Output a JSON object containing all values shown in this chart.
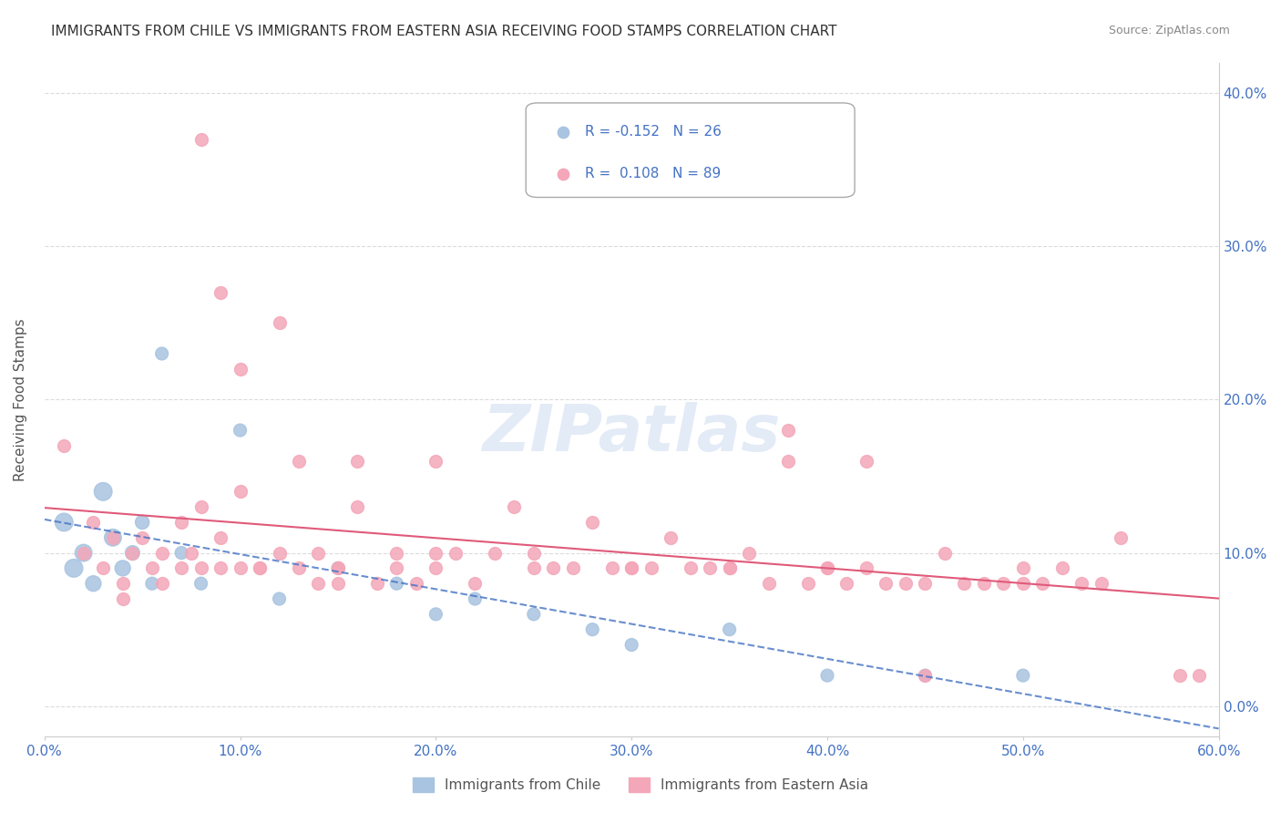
{
  "title": "IMMIGRANTS FROM CHILE VS IMMIGRANTS FROM EASTERN ASIA RECEIVING FOOD STAMPS CORRELATION CHART",
  "source": "Source: ZipAtlas.com",
  "ylabel": "Receiving Food Stamps",
  "xlabel": "",
  "background_color": "#ffffff",
  "grid_color": "#cccccc",
  "title_color": "#333333",
  "source_color": "#888888",
  "axis_label_color": "#555555",
  "tick_color": "#4472c4",
  "xlim": [
    0.0,
    0.6
  ],
  "ylim": [
    -0.02,
    0.42
  ],
  "yticks": [
    0.0,
    0.1,
    0.2,
    0.3,
    0.4
  ],
  "xticks": [
    0.0,
    0.1,
    0.2,
    0.3,
    0.4,
    0.5,
    0.6
  ],
  "chile_color": "#a8c4e0",
  "chile_line_color": "#4472c4",
  "east_asia_color": "#f4a7b9",
  "east_asia_line_color": "#e05a7a",
  "chile_R": -0.152,
  "chile_N": 26,
  "east_asia_R": 0.108,
  "east_asia_N": 89,
  "watermark": "ZIPatlas",
  "chile_scatter_x": [
    0.01,
    0.015,
    0.02,
    0.025,
    0.03,
    0.035,
    0.04,
    0.045,
    0.05,
    0.055,
    0.06,
    0.07,
    0.08,
    0.1,
    0.12,
    0.15,
    0.18,
    0.2,
    0.22,
    0.25,
    0.28,
    0.3,
    0.35,
    0.4,
    0.45,
    0.5
  ],
  "chile_scatter_y": [
    0.12,
    0.09,
    0.1,
    0.08,
    0.14,
    0.11,
    0.09,
    0.1,
    0.12,
    0.08,
    0.23,
    0.1,
    0.08,
    0.18,
    0.07,
    0.09,
    0.08,
    0.06,
    0.07,
    0.06,
    0.05,
    0.04,
    0.05,
    0.02,
    0.02,
    0.02
  ],
  "chile_scatter_size": [
    200,
    200,
    180,
    150,
    200,
    180,
    150,
    130,
    120,
    100,
    100,
    100,
    100,
    100,
    100,
    100,
    100,
    100,
    100,
    100,
    100,
    100,
    100,
    100,
    100,
    100
  ],
  "east_asia_scatter_x": [
    0.01,
    0.02,
    0.025,
    0.03,
    0.035,
    0.04,
    0.045,
    0.05,
    0.055,
    0.06,
    0.07,
    0.075,
    0.08,
    0.09,
    0.1,
    0.11,
    0.12,
    0.13,
    0.14,
    0.15,
    0.16,
    0.18,
    0.2,
    0.22,
    0.24,
    0.26,
    0.28,
    0.3,
    0.32,
    0.34,
    0.36,
    0.38,
    0.4,
    0.42,
    0.44,
    0.46,
    0.48,
    0.5,
    0.52,
    0.54,
    0.1,
    0.12,
    0.14,
    0.16,
    0.18,
    0.2,
    0.08,
    0.09,
    0.11,
    0.13,
    0.15,
    0.17,
    0.19,
    0.21,
    0.23,
    0.25,
    0.27,
    0.29,
    0.31,
    0.33,
    0.35,
    0.37,
    0.39,
    0.41,
    0.43,
    0.45,
    0.47,
    0.49,
    0.51,
    0.53,
    0.04,
    0.06,
    0.07,
    0.08,
    0.09,
    0.1,
    0.15,
    0.2,
    0.25,
    0.3,
    0.35,
    0.4,
    0.45,
    0.5,
    0.38,
    0.42,
    0.55,
    0.58,
    0.59
  ],
  "east_asia_scatter_y": [
    0.17,
    0.1,
    0.12,
    0.09,
    0.11,
    0.08,
    0.1,
    0.11,
    0.09,
    0.1,
    0.12,
    0.1,
    0.13,
    0.11,
    0.14,
    0.09,
    0.25,
    0.16,
    0.1,
    0.09,
    0.13,
    0.1,
    0.16,
    0.08,
    0.13,
    0.09,
    0.12,
    0.09,
    0.11,
    0.09,
    0.1,
    0.18,
    0.09,
    0.09,
    0.08,
    0.1,
    0.08,
    0.09,
    0.09,
    0.08,
    0.22,
    0.1,
    0.08,
    0.16,
    0.09,
    0.1,
    0.37,
    0.27,
    0.09,
    0.09,
    0.09,
    0.08,
    0.08,
    0.1,
    0.1,
    0.09,
    0.09,
    0.09,
    0.09,
    0.09,
    0.09,
    0.08,
    0.08,
    0.08,
    0.08,
    0.08,
    0.08,
    0.08,
    0.08,
    0.08,
    0.07,
    0.08,
    0.09,
    0.09,
    0.09,
    0.09,
    0.08,
    0.09,
    0.1,
    0.09,
    0.09,
    0.09,
    0.02,
    0.08,
    0.16,
    0.16,
    0.11,
    0.02,
    0.02
  ]
}
